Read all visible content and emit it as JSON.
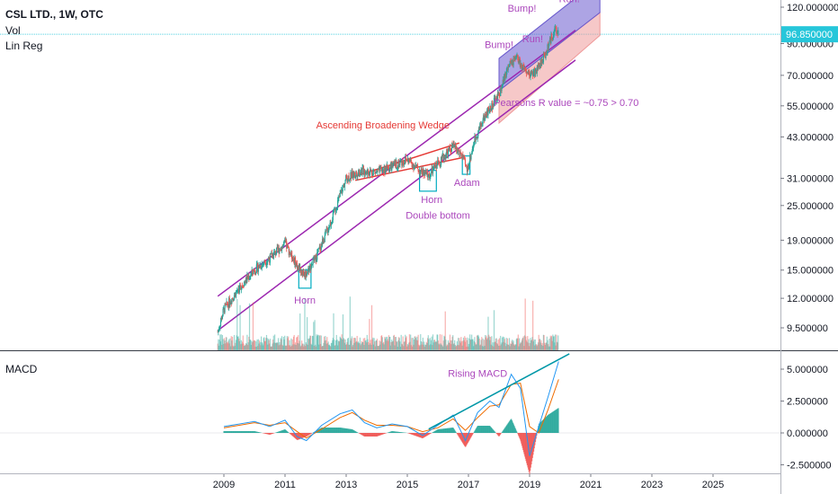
{
  "header": {
    "symbol_line": "CSL LTD., 1W, OTC",
    "vol_label": "Vol",
    "linreg_label": "Lin Reg",
    "macd_label": "MACD"
  },
  "colors": {
    "up": "#26a69a",
    "down": "#ef5350",
    "channel": "#9c27b0",
    "annotation_purple": "#ab47bc",
    "annotation_red": "#e53935",
    "macd_line": "#2196f3",
    "signal_line": "#ef6c00",
    "rising_line": "#0097a7",
    "box": "#00acc1",
    "price_label_bg": "#26c6da",
    "bump_fill": "#6a5acd",
    "run_fill": "#ef9a9a"
  },
  "chart_data": [
    {
      "type": "candlestick",
      "scale": "log",
      "price_axis_ticks": [
        "120.000000",
        "90.000000",
        "70.000000",
        "55.000000",
        "43.000000",
        "31.000000",
        "25.000000",
        "19.000000",
        "15.000000",
        "12.000000",
        "9.500000"
      ],
      "last_price_label": "96.850000",
      "x_ticks": [
        "2009",
        "2011",
        "2013",
        "2015",
        "2017",
        "2019",
        "2021",
        "2023",
        "2025"
      ],
      "price_path": [
        {
          "x": 2008.8,
          "y": 9.2
        },
        {
          "x": 2009.0,
          "y": 11.0
        },
        {
          "x": 2009.5,
          "y": 13.0
        },
        {
          "x": 2010.0,
          "y": 15.0
        },
        {
          "x": 2010.5,
          "y": 16.5
        },
        {
          "x": 2011.0,
          "y": 18.5
        },
        {
          "x": 2011.4,
          "y": 15.5
        },
        {
          "x": 2011.65,
          "y": 14.5
        },
        {
          "x": 2012.0,
          "y": 16.5
        },
        {
          "x": 2012.5,
          "y": 22.0
        },
        {
          "x": 2013.0,
          "y": 31.0
        },
        {
          "x": 2013.5,
          "y": 33.0
        },
        {
          "x": 2014.0,
          "y": 32.5
        },
        {
          "x": 2014.5,
          "y": 34.0
        },
        {
          "x": 2015.0,
          "y": 36.0
        },
        {
          "x": 2015.4,
          "y": 33.0
        },
        {
          "x": 2015.7,
          "y": 31.5
        },
        {
          "x": 2016.0,
          "y": 35.0
        },
        {
          "x": 2016.5,
          "y": 40.0
        },
        {
          "x": 2016.8,
          "y": 37.0
        },
        {
          "x": 2016.95,
          "y": 33.0
        },
        {
          "x": 2017.2,
          "y": 42.0
        },
        {
          "x": 2017.5,
          "y": 50.0
        },
        {
          "x": 2018.0,
          "y": 60.0
        },
        {
          "x": 2018.3,
          "y": 75.0
        },
        {
          "x": 2018.6,
          "y": 80.0
        },
        {
          "x": 2018.9,
          "y": 70.0
        },
        {
          "x": 2019.2,
          "y": 72.0
        },
        {
          "x": 2019.5,
          "y": 82.0
        },
        {
          "x": 2019.8,
          "y": 100.0
        },
        {
          "x": 2019.95,
          "y": 96.85
        }
      ],
      "channel_upper": [
        {
          "x": 2008.8,
          "y": 12.2
        },
        {
          "x": 2020.5,
          "y": 100.0
        }
      ],
      "channel_lower": [
        {
          "x": 2008.8,
          "y": 9.3
        },
        {
          "x": 2020.5,
          "y": 79.0
        }
      ],
      "wedge_upper": [
        {
          "x": 2013.3,
          "y": 31.5
        },
        {
          "x": 2016.7,
          "y": 41.0
        }
      ],
      "wedge_lower": [
        {
          "x": 2013.3,
          "y": 30.5
        },
        {
          "x": 2016.8,
          "y": 36.5
        }
      ],
      "bump_band": {
        "upper": [
          {
            "x": 2018.0,
            "y": 80.0
          },
          {
            "x": 2021.3,
            "y": 150.0
          }
        ],
        "lower": [
          {
            "x": 2018.0,
            "y": 62.0
          },
          {
            "x": 2021.3,
            "y": 115.0
          }
        ]
      },
      "run_band": {
        "upper": [
          {
            "x": 2018.0,
            "y": 62.0
          },
          {
            "x": 2021.3,
            "y": 115.0
          }
        ],
        "lower": [
          {
            "x": 2018.0,
            "y": 48.0
          },
          {
            "x": 2021.3,
            "y": 96.0
          }
        ]
      },
      "boxes": [
        {
          "x0": 2011.45,
          "x1": 2011.85,
          "y0": 13.0,
          "y1": 15.0
        },
        {
          "x0": 2015.4,
          "x1": 2015.95,
          "y0": 28.0,
          "y1": 33.0
        },
        {
          "x0": 2016.8,
          "x1": 2017.05,
          "y0": 32.0,
          "y1": 37.0
        }
      ],
      "annotations": [
        {
          "text": "Horn",
          "x": 2011.65,
          "y": 11.5,
          "color": "annotation_purple"
        },
        {
          "text": "Horn",
          "x": 2015.8,
          "y": 25.5,
          "color": "annotation_purple"
        },
        {
          "text": "Adam",
          "x": 2016.95,
          "y": 29.2,
          "color": "annotation_purple"
        },
        {
          "text": "Double bottom",
          "x": 2016.0,
          "y": 22.5,
          "color": "annotation_purple"
        },
        {
          "text": "Ascending Broadening Wedge",
          "x": 2014.2,
          "y": 46.0,
          "color": "annotation_red"
        },
        {
          "text": "Bump!",
          "x": 2018.0,
          "y": 87.0,
          "color": "annotation_purple"
        },
        {
          "text": "Bump!",
          "x": 2018.75,
          "y": 116.0,
          "color": "annotation_purple"
        },
        {
          "text": "Run!",
          "x": 2019.1,
          "y": 91.0,
          "color": "annotation_purple"
        },
        {
          "text": "Run!",
          "x": 2020.3,
          "y": 125.0,
          "color": "annotation_purple"
        },
        {
          "text": "Pearsons R value = ~0.75 > 0.70",
          "x": 2020.2,
          "y": 55.0,
          "color": "annotation_purple"
        }
      ]
    },
    {
      "type": "line",
      "name": "MACD",
      "y_ticks": [
        "5.000000",
        "2.500000",
        "0.000000",
        "-2.500000"
      ],
      "ylim": [
        -3.0,
        6.5
      ],
      "macd": [
        {
          "x": 2009.0,
          "y": 0.5
        },
        {
          "x": 2009.5,
          "y": 0.7
        },
        {
          "x": 2010.0,
          "y": 0.9
        },
        {
          "x": 2010.5,
          "y": 0.5
        },
        {
          "x": 2011.0,
          "y": 1.0
        },
        {
          "x": 2011.4,
          "y": -0.3
        },
        {
          "x": 2011.7,
          "y": -0.6
        },
        {
          "x": 2012.2,
          "y": 0.6
        },
        {
          "x": 2012.8,
          "y": 1.5
        },
        {
          "x": 2013.2,
          "y": 1.8
        },
        {
          "x": 2013.6,
          "y": 0.8
        },
        {
          "x": 2014.0,
          "y": 0.4
        },
        {
          "x": 2014.5,
          "y": 0.7
        },
        {
          "x": 2015.0,
          "y": 0.5
        },
        {
          "x": 2015.5,
          "y": -0.2
        },
        {
          "x": 2016.0,
          "y": 0.6
        },
        {
          "x": 2016.5,
          "y": 1.4
        },
        {
          "x": 2016.9,
          "y": -0.6
        },
        {
          "x": 2017.3,
          "y": 1.6
        },
        {
          "x": 2017.7,
          "y": 2.5
        },
        {
          "x": 2018.0,
          "y": 2.0
        },
        {
          "x": 2018.4,
          "y": 4.6
        },
        {
          "x": 2018.7,
          "y": 3.5
        },
        {
          "x": 2019.0,
          "y": -1.8
        },
        {
          "x": 2019.3,
          "y": 0.5
        },
        {
          "x": 2019.6,
          "y": 2.8
        },
        {
          "x": 2019.95,
          "y": 5.6
        }
      ],
      "signal": [
        {
          "x": 2009.0,
          "y": 0.4
        },
        {
          "x": 2009.5,
          "y": 0.6
        },
        {
          "x": 2010.0,
          "y": 0.8
        },
        {
          "x": 2010.5,
          "y": 0.6
        },
        {
          "x": 2011.0,
          "y": 0.8
        },
        {
          "x": 2011.4,
          "y": 0.1
        },
        {
          "x": 2011.7,
          "y": -0.4
        },
        {
          "x": 2012.2,
          "y": 0.3
        },
        {
          "x": 2012.8,
          "y": 1.2
        },
        {
          "x": 2013.2,
          "y": 1.6
        },
        {
          "x": 2013.6,
          "y": 1.0
        },
        {
          "x": 2014.0,
          "y": 0.6
        },
        {
          "x": 2014.5,
          "y": 0.6
        },
        {
          "x": 2015.0,
          "y": 0.5
        },
        {
          "x": 2015.5,
          "y": 0.1
        },
        {
          "x": 2016.0,
          "y": 0.4
        },
        {
          "x": 2016.5,
          "y": 1.1
        },
        {
          "x": 2016.9,
          "y": 0.2
        },
        {
          "x": 2017.3,
          "y": 1.2
        },
        {
          "x": 2017.7,
          "y": 2.1
        },
        {
          "x": 2018.0,
          "y": 2.2
        },
        {
          "x": 2018.4,
          "y": 3.8
        },
        {
          "x": 2018.7,
          "y": 3.9
        },
        {
          "x": 2019.0,
          "y": 0.5
        },
        {
          "x": 2019.3,
          "y": 0.0
        },
        {
          "x": 2019.6,
          "y": 1.8
        },
        {
          "x": 2019.95,
          "y": 4.2
        }
      ],
      "rising_trend": [
        {
          "x": 2015.7,
          "y": 0.3
        },
        {
          "x": 2020.3,
          "y": 6.2
        }
      ],
      "annotation": {
        "text": "Rising MACD",
        "x": 2017.3,
        "y": 4.4
      }
    }
  ]
}
